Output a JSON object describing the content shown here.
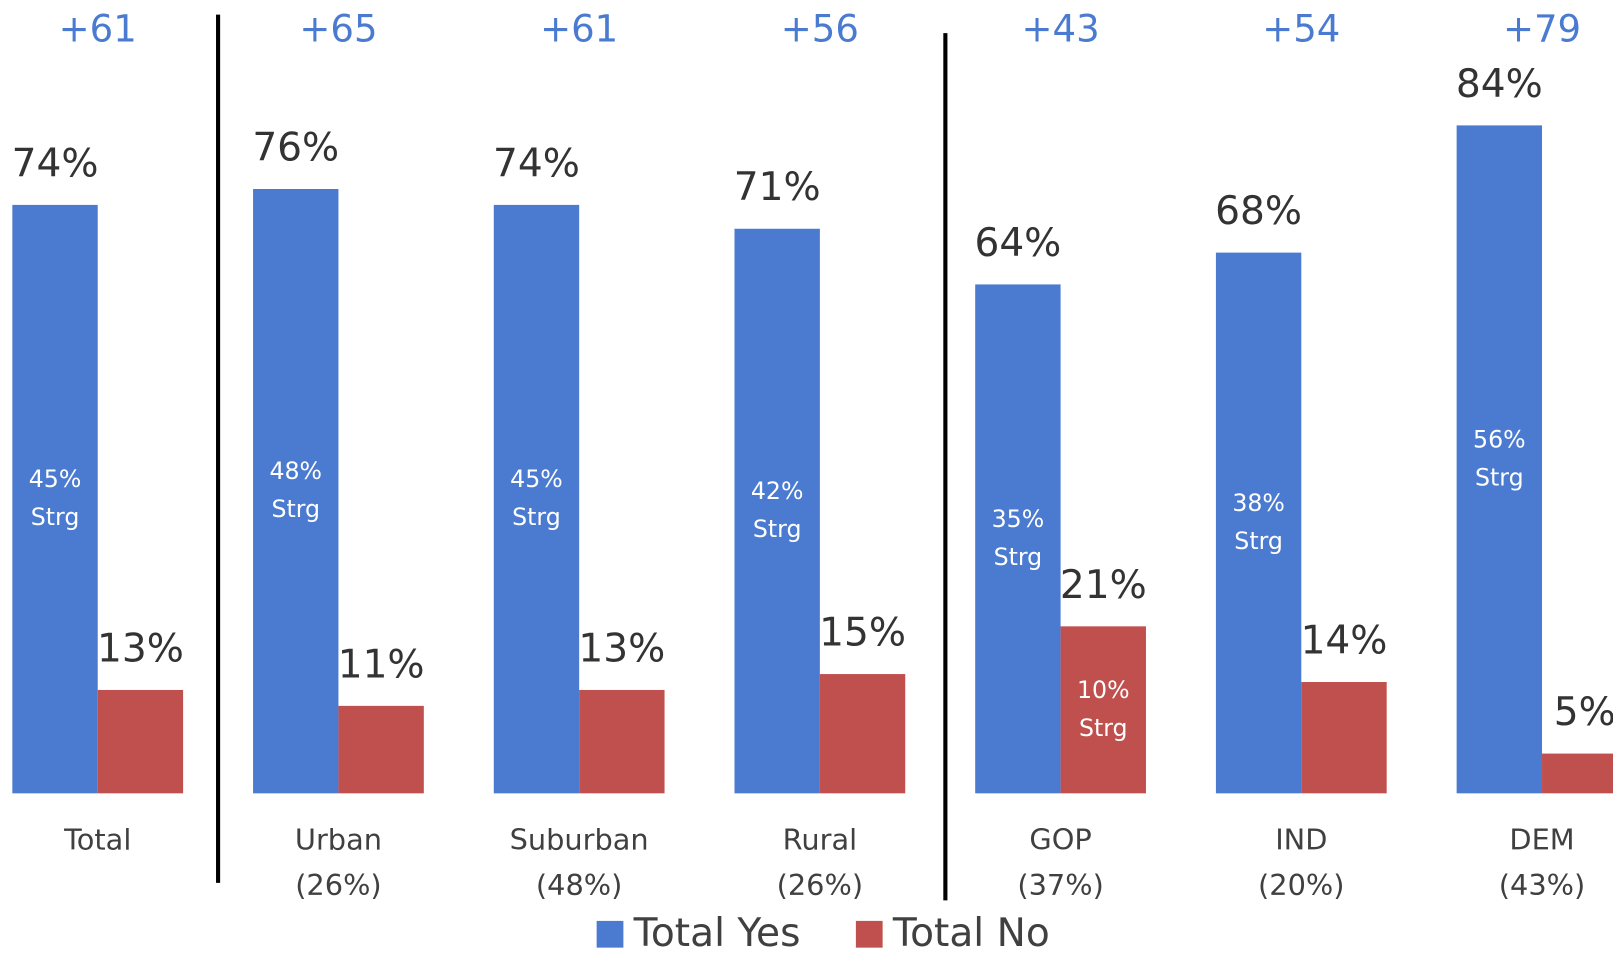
{
  "chart_data": {
    "type": "bar",
    "categories": [
      [
        "Total"
      ],
      [
        "Urban",
        "(26%)"
      ],
      [
        "Suburban",
        "(48%)"
      ],
      [
        "Rural",
        "(26%)"
      ],
      [
        "GOP",
        "(37%)"
      ],
      [
        "IND",
        "(20%)"
      ],
      [
        "DEM",
        "(43%)"
      ]
    ],
    "net_labels": [
      "+61",
      "+65",
      "+61",
      "+56",
      "+43",
      "+54",
      "+79"
    ],
    "series": [
      {
        "name": "Total Yes",
        "color": "#4a7bd0",
        "values": [
          74,
          76,
          74,
          71,
          64,
          68,
          84
        ],
        "value_labels": [
          "74%",
          "76%",
          "74%",
          "71%",
          "64%",
          "68%",
          "84%"
        ],
        "inner_labels": [
          [
            "45%",
            "Strg"
          ],
          [
            "48%",
            "Strg"
          ],
          [
            "45%",
            "Strg"
          ],
          [
            "42%",
            "Strg"
          ],
          [
            "35%",
            "Strg"
          ],
          [
            "38%",
            "Strg"
          ],
          [
            "56%",
            "Strg"
          ]
        ]
      },
      {
        "name": "Total No",
        "color": "#c0504d",
        "values": [
          13,
          11,
          13,
          15,
          21,
          14,
          5
        ],
        "value_labels": [
          "13%",
          "11%",
          "13%",
          "15%",
          "21%",
          "14%",
          "5%"
        ],
        "inner_labels": [
          null,
          null,
          null,
          null,
          [
            "10%",
            "Strg"
          ],
          null,
          null
        ]
      }
    ],
    "ylim": [
      0,
      100
    ]
  }
}
